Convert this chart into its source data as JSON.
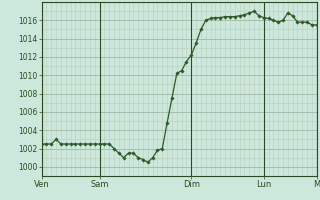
{
  "background_color": "#cce8dc",
  "plot_bg_color": "#cce8dc",
  "line_color": "#2d5a27",
  "marker_color": "#2d5a27",
  "grid_color_major": "#aabcaa",
  "grid_color_minor": "#bbccbb",
  "tick_label_color": "#2d4a22",
  "axis_color": "#2d4a22",
  "day_labels": [
    "Ven",
    "Sam",
    "Dim",
    "Lun",
    "M"
  ],
  "ylim": [
    999.0,
    1018.0
  ],
  "yticks": [
    1000,
    1002,
    1004,
    1006,
    1008,
    1010,
    1012,
    1014,
    1016
  ],
  "data_x": [
    0,
    1,
    2,
    3,
    4,
    5,
    6,
    7,
    8,
    9,
    10,
    11,
    12,
    13,
    14,
    15,
    16,
    17,
    18,
    19,
    20,
    21,
    22,
    23,
    24,
    25,
    26,
    27,
    28,
    29,
    30,
    31,
    32,
    33,
    34,
    35,
    36,
    37,
    38,
    39,
    40,
    41,
    42,
    43,
    44,
    45,
    46,
    47,
    48,
    49,
    50,
    51,
    52,
    53,
    54,
    55,
    56,
    57
  ],
  "data_y": [
    1002.5,
    1002.5,
    1002.5,
    1003.0,
    1002.5,
    1002.5,
    1002.5,
    1002.5,
    1002.5,
    1002.5,
    1002.5,
    1002.5,
    1002.5,
    1002.5,
    1002.5,
    1002.0,
    1001.5,
    1001.0,
    1001.5,
    1001.5,
    1001.0,
    1000.8,
    1000.5,
    1001.0,
    1001.8,
    1002.0,
    1004.8,
    1007.5,
    1010.2,
    1010.5,
    1011.5,
    1012.2,
    1013.5,
    1015.0,
    1016.0,
    1016.2,
    1016.3,
    1016.3,
    1016.4,
    1016.4,
    1016.4,
    1016.5,
    1016.6,
    1016.8,
    1017.0,
    1016.5,
    1016.3,
    1016.2,
    1016.0,
    1015.8,
    1016.0,
    1016.8,
    1016.5,
    1015.8,
    1015.8,
    1015.8,
    1015.5,
    1015.5
  ],
  "n_points": 58,
  "xlim_days": [
    0,
    57
  ],
  "day_x_indices": [
    0,
    12,
    31,
    46,
    57
  ],
  "figsize": [
    3.2,
    2.0
  ],
  "dpi": 100
}
